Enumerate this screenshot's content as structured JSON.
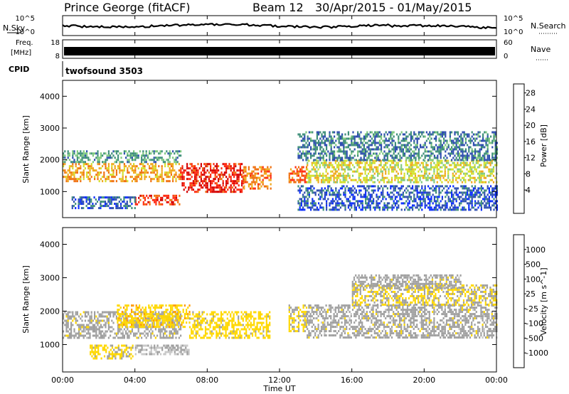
{
  "header": {
    "station": "Prince George (fitACF)",
    "beam": "Beam 12",
    "dates": "30/Apr/2015 - 01/May/2015"
  },
  "top_panels": {
    "nsky_label": "N.Sky",
    "nsearch_label": "N.Search",
    "noise_ticks_left": [
      "10^5",
      "10^0"
    ],
    "noise_ticks_right": [
      "10^5",
      "10^0"
    ],
    "freq_label_1": "Freq.",
    "freq_label_2": "[MHz]",
    "freq_ticks": [
      "18",
      "8"
    ],
    "nave_label": "Nave",
    "nave_ticks": [
      "60",
      "0"
    ],
    "cpid_label": "CPID",
    "cpid_value": "twofsound 3503"
  },
  "colors": {
    "power_scale": [
      "#0a2cff",
      "#2f4fb0",
      "#3f8f7a",
      "#7fc97f",
      "#d4e02a",
      "#f0a81c",
      "#f07010",
      "#ff2a10",
      "#d40000"
    ],
    "velocity_scale": [
      "#2030b0",
      "#2f8a5a",
      "#58b848",
      "#c8c8c8",
      "#a0a0a0",
      "#ffd800",
      "#ff9a00",
      "#ff5a00",
      "#ff2000"
    ]
  },
  "chart_data": [
    {
      "type": "heatmap",
      "name": "power",
      "ylabel": "Slant Range [km]",
      "yticks": [
        "4000",
        "3000",
        "2000",
        "1000"
      ],
      "ylim": [
        180,
        4500
      ],
      "xlim": [
        0,
        24
      ],
      "colorbar": {
        "label": "Power [dB]",
        "ticks": [
          "28",
          "24",
          "20",
          "16",
          "12",
          "8",
          "4"
        ],
        "range": [
          0,
          32
        ]
      },
      "bands": [
        {
          "t0": 0.0,
          "t1": 6.5,
          "r0": 1300,
          "r1": 1900,
          "level": 20
        },
        {
          "t0": 0.0,
          "t1": 6.5,
          "r0": 1900,
          "r1": 2300,
          "level": 10
        },
        {
          "t0": 4.0,
          "t1": 6.5,
          "r0": 600,
          "r1": 900,
          "level": 26
        },
        {
          "t0": 0.5,
          "t1": 4.0,
          "r0": 500,
          "r1": 850,
          "level": 6
        },
        {
          "t0": 6.5,
          "t1": 10.0,
          "r0": 1000,
          "r1": 1900,
          "level": 28
        },
        {
          "t0": 10.0,
          "t1": 11.5,
          "r0": 1100,
          "r1": 1800,
          "level": 22
        },
        {
          "t0": 12.5,
          "t1": 13.5,
          "r0": 1300,
          "r1": 1800,
          "level": 24
        },
        {
          "t0": 13.5,
          "t1": 24.0,
          "r0": 1300,
          "r1": 2000,
          "level": 16
        },
        {
          "t0": 13.0,
          "t1": 24.0,
          "r0": 2000,
          "r1": 2900,
          "level": 8
        },
        {
          "t0": 13.0,
          "t1": 24.0,
          "r0": 400,
          "r1": 1200,
          "level": 5
        }
      ]
    },
    {
      "type": "heatmap",
      "name": "velocity",
      "ylabel": "Slant Range [km]",
      "yticks": [
        "4000",
        "3000",
        "2000",
        "1000"
      ],
      "ylim": [
        180,
        4500
      ],
      "xlim": [
        0,
        24
      ],
      "colorbar": {
        "label": "Velocity [m s^-1]",
        "ticks": [
          "1000",
          "500",
          "100",
          "25",
          "-25",
          "-100",
          "-500",
          "-1000"
        ],
        "range": [
          -1200,
          1200
        ]
      },
      "bands": [
        {
          "t0": 0.0,
          "t1": 6.5,
          "r0": 1200,
          "r1": 2000,
          "level": 0
        },
        {
          "t0": 1.5,
          "t1": 4.0,
          "r0": 600,
          "r1": 1000,
          "level": -200
        },
        {
          "t0": 3.0,
          "t1": 7.0,
          "r0": 1500,
          "r1": 2200,
          "level": -300
        },
        {
          "t0": 4.0,
          "t1": 7.0,
          "r0": 700,
          "r1": 1000,
          "level": 150
        },
        {
          "t0": 7.0,
          "t1": 11.5,
          "r0": 1200,
          "r1": 2000,
          "level": -250
        },
        {
          "t0": 12.5,
          "t1": 13.5,
          "r0": 1400,
          "r1": 2200,
          "level": -150
        },
        {
          "t0": 13.5,
          "t1": 24.0,
          "r0": 1200,
          "r1": 2200,
          "level": 0
        },
        {
          "t0": 16.0,
          "t1": 24.0,
          "r0": 2200,
          "r1": 2800,
          "level": -150
        },
        {
          "t0": 16.0,
          "t1": 22.0,
          "r0": 2700,
          "r1": 3100,
          "level": 0
        }
      ]
    }
  ],
  "time_axis": {
    "ticks": [
      "00:00",
      "04:00",
      "08:00",
      "12:00",
      "16:00",
      "20:00",
      "00:00"
    ],
    "label": "Time UT"
  }
}
